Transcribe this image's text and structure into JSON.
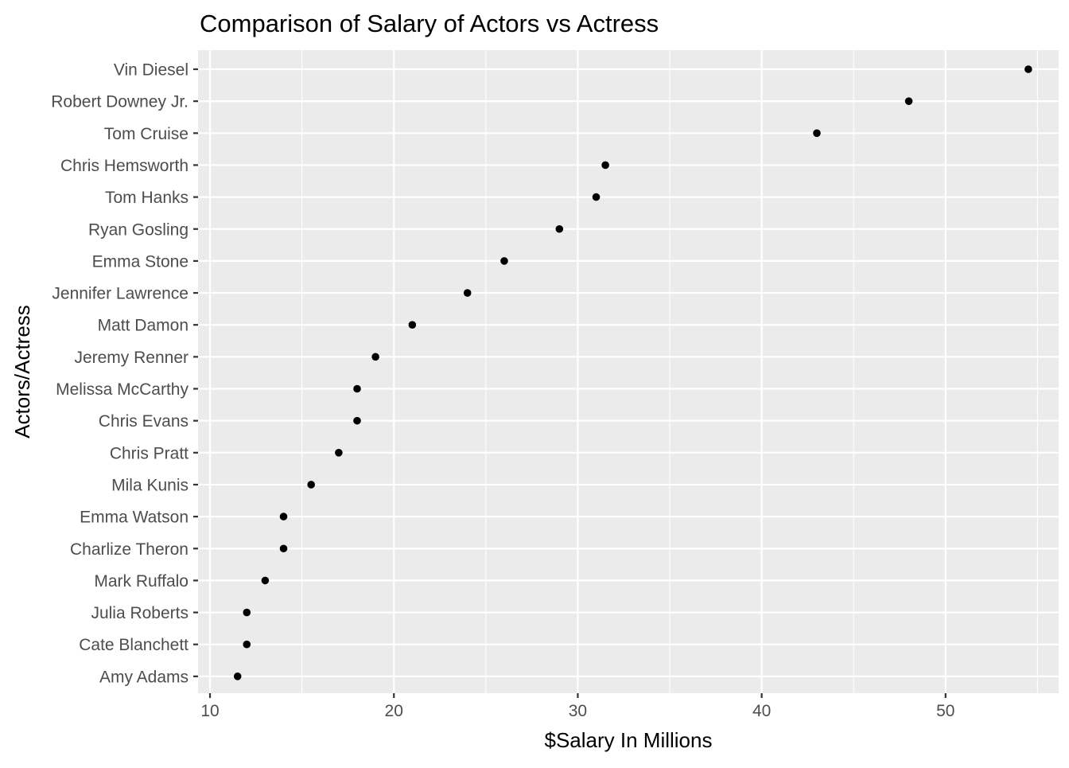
{
  "chart_data": {
    "type": "scatter",
    "title": "Comparison of Salary of Actors vs Actress",
    "xlabel": "$Salary In Millions",
    "ylabel": "Actors/Actress",
    "xlim": [
      9.35,
      56.15
    ],
    "x_ticks": [
      10,
      20,
      30,
      40,
      50
    ],
    "x_minor_ticks": [
      15,
      25,
      35,
      45,
      55
    ],
    "grid": true,
    "legend": "none",
    "point_color": "#000000",
    "panel_color": "#ebebeb",
    "categories_bottom_to_top": [
      "Amy Adams",
      "Cate Blanchett",
      "Julia Roberts",
      "Mark Ruffalo",
      "Charlize Theron",
      "Emma Watson",
      "Mila Kunis",
      "Chris Pratt",
      "Chris Evans",
      "Melissa McCarthy",
      "Jeremy Renner",
      "Matt Damon",
      "Jennifer Lawrence",
      "Emma Stone",
      "Ryan Gosling",
      "Tom Hanks",
      "Chris Hemsworth",
      "Tom Cruise",
      "Robert Downey Jr.",
      "Vin Diesel"
    ],
    "values": [
      11.5,
      12,
      12,
      13,
      14,
      14,
      15.5,
      17,
      18,
      18,
      19,
      21,
      24,
      26,
      29,
      31,
      31.5,
      43,
      48,
      54.5
    ]
  }
}
